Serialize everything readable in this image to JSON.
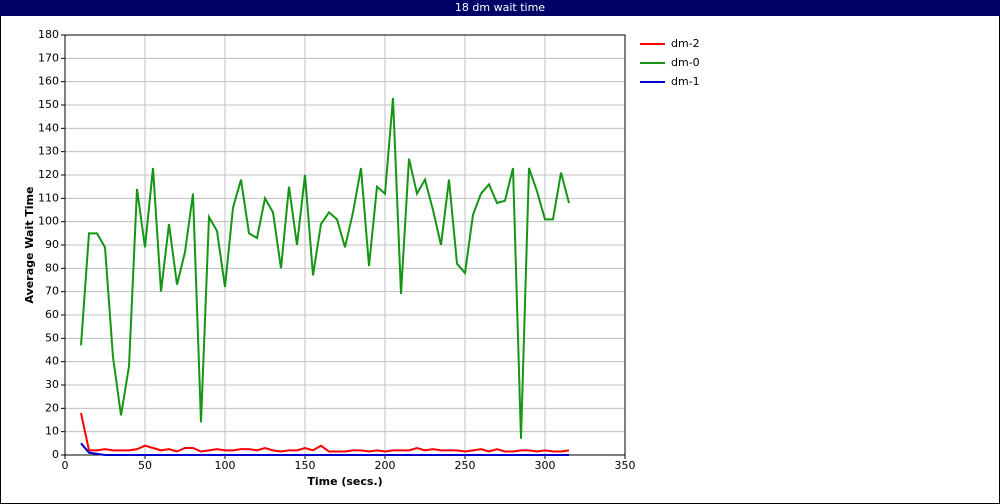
{
  "chart_data": {
    "type": "line",
    "title": "18 dm wait time",
    "x_label": "Time (secs.)",
    "y_label": "Average Wait Time",
    "x": [
      10,
      15,
      20,
      25,
      30,
      35,
      40,
      45,
      50,
      55,
      60,
      65,
      70,
      75,
      80,
      85,
      90,
      95,
      100,
      105,
      110,
      115,
      120,
      125,
      130,
      135,
      140,
      145,
      150,
      155,
      160,
      165,
      170,
      175,
      180,
      185,
      190,
      195,
      200,
      205,
      210,
      215,
      220,
      225,
      230,
      235,
      240,
      245,
      250,
      255,
      260,
      265,
      270,
      275,
      280,
      285,
      290,
      295,
      300,
      305,
      310,
      315
    ],
    "series": [
      {
        "name": "dm-2",
        "color": "#ff0000",
        "values": [
          18,
          2,
          2,
          2.5,
          2,
          2,
          2,
          2.5,
          4,
          3,
          2,
          2.5,
          1.5,
          3,
          3,
          1.5,
          2,
          2.5,
          2,
          2,
          2.5,
          2.5,
          2,
          3,
          2,
          1.5,
          2,
          2,
          3,
          2,
          4,
          1.5,
          1.5,
          1.5,
          2,
          2,
          1.5,
          2,
          1.5,
          2,
          2,
          2,
          3,
          2,
          2.5,
          2,
          2,
          2,
          1.5,
          2,
          2.5,
          1.5,
          2.5,
          1.5,
          1.5,
          2,
          2,
          1.5,
          2,
          1.5,
          1.5,
          2
        ]
      },
      {
        "name": "dm-0",
        "color": "#149614",
        "values": [
          47,
          95,
          95,
          89,
          42,
          17,
          38,
          114,
          89,
          123,
          70,
          99,
          73,
          87,
          112,
          14,
          102,
          96,
          72,
          106,
          118,
          95,
          93,
          110,
          104,
          80,
          115,
          90,
          120,
          77,
          99,
          104,
          101,
          89,
          104,
          123,
          81,
          115,
          112,
          153,
          69,
          127,
          112,
          118,
          105,
          90,
          118,
          82,
          78,
          103,
          112,
          116,
          108,
          109,
          123,
          7,
          123,
          113,
          101,
          101,
          121,
          108
        ]
      },
      {
        "name": "dm-1",
        "color": "#0000cc",
        "values": [
          5,
          1,
          0.5,
          0,
          0,
          0,
          0,
          0,
          0,
          0,
          0,
          0,
          0,
          0,
          0,
          0,
          0,
          0,
          0,
          0,
          0,
          0,
          0,
          0,
          0,
          0,
          0,
          0,
          0,
          0,
          0,
          0,
          0,
          0,
          0,
          0,
          0,
          0,
          0,
          0,
          0,
          0,
          0,
          0,
          0,
          0,
          0,
          0,
          0,
          0,
          0,
          0,
          0,
          0,
          0,
          0,
          0,
          0,
          0,
          0,
          0,
          0
        ]
      }
    ],
    "xlim": [
      0,
      350
    ],
    "xticks": [
      0,
      50,
      100,
      150,
      200,
      250,
      300,
      350
    ],
    "ylim": [
      0,
      180
    ],
    "yticks": [
      0,
      10,
      20,
      30,
      40,
      50,
      60,
      70,
      80,
      90,
      100,
      110,
      120,
      130,
      140,
      150,
      160,
      170,
      180
    ],
    "grid": true,
    "legend": "right"
  }
}
